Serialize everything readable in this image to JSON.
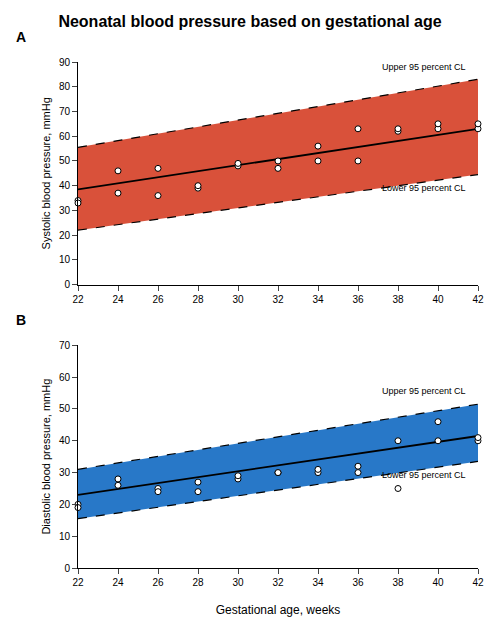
{
  "chart_data": [
    {
      "type": "scatter",
      "title": "Neonatal blood pressure based on gestational age",
      "subtitle": "A",
      "ylabel": "Systolic blood pressure, mmHg",
      "xlim": [
        22,
        42
      ],
      "xticks": [
        22,
        24,
        26,
        28,
        30,
        32,
        34,
        36,
        38,
        40,
        42
      ],
      "ylim": [
        0,
        90
      ],
      "yticks": [
        0,
        10,
        20,
        30,
        40,
        50,
        60,
        70,
        80,
        90
      ],
      "grid": false,
      "series": [
        {
          "type": "band",
          "color": "#d9513a",
          "x": [
            22,
            42
          ],
          "upper": [
            55.5,
            83.0
          ],
          "lower": [
            22.0,
            44.5
          ]
        },
        {
          "type": "line",
          "color": "#000000",
          "line_style": "dashed",
          "x": [
            22,
            42
          ],
          "values": [
            55.5,
            83.0
          ]
        },
        {
          "type": "line",
          "color": "#000000",
          "line_style": "dashed",
          "x": [
            22,
            42
          ],
          "values": [
            22.0,
            44.5
          ]
        },
        {
          "type": "line",
          "color": "#000000",
          "line_style": "solid",
          "x": [
            22,
            42
          ],
          "values": [
            38.5,
            63.0
          ]
        },
        {
          "type": "scatter",
          "color": "#000000",
          "marker": "open circle",
          "x": [
            22,
            22,
            24,
            24,
            26,
            26,
            28,
            28,
            30,
            30,
            32,
            32,
            34,
            34,
            36,
            36,
            38,
            38,
            40,
            40,
            42,
            42
          ],
          "values": [
            34,
            33,
            37,
            46,
            36,
            47,
            39,
            40,
            48,
            49,
            47,
            50,
            50,
            56,
            50,
            63,
            62,
            63,
            63,
            65,
            63,
            65
          ]
        }
      ],
      "annotations": [
        {
          "text": "Upper 95 percent CL",
          "x": 41.5,
          "y": 85.0
        },
        {
          "text": "Lower 95 percent CL",
          "x": 41.5,
          "y": 42.0
        }
      ]
    },
    {
      "type": "scatter",
      "subtitle": "B",
      "xlabel": "Gestational age, weeks",
      "ylabel": "Diastolic blood pressure, mmHg",
      "xlim": [
        22,
        42
      ],
      "xticks": [
        22,
        24,
        26,
        28,
        30,
        32,
        34,
        36,
        38,
        40,
        42
      ],
      "ylim": [
        0,
        70
      ],
      "yticks": [
        0,
        10,
        20,
        30,
        40,
        50,
        60,
        70
      ],
      "grid": false,
      "series": [
        {
          "type": "band",
          "color": "#2878c8",
          "x": [
            22,
            42
          ],
          "upper": [
            31.0,
            51.5
          ],
          "lower": [
            15.5,
            33.5
          ]
        },
        {
          "type": "line",
          "color": "#000000",
          "line_style": "dashed",
          "x": [
            22,
            42
          ],
          "values": [
            31.0,
            51.5
          ]
        },
        {
          "type": "line",
          "color": "#000000",
          "line_style": "dashed",
          "x": [
            22,
            42
          ],
          "values": [
            15.5,
            33.5
          ]
        },
        {
          "type": "line",
          "color": "#000000",
          "line_style": "solid",
          "x": [
            22,
            42
          ],
          "values": [
            23.0,
            41.5
          ]
        },
        {
          "type": "scatter",
          "color": "#000000",
          "marker": "open circle",
          "x": [
            22,
            22,
            24,
            24,
            26,
            26,
            28,
            28,
            30,
            30,
            32,
            32,
            34,
            34,
            36,
            36,
            38,
            38,
            40,
            40,
            42,
            42
          ],
          "values": [
            20,
            19,
            28,
            26,
            25,
            24,
            24,
            27,
            28,
            29,
            30,
            30,
            30,
            31,
            30,
            32,
            25,
            40,
            40,
            46,
            40,
            41
          ]
        }
      ],
      "annotations": [
        {
          "text": "Upper 95 percent CL",
          "x": 41.5,
          "y": 53.5
        },
        {
          "text": "Lower 95 percent CL",
          "x": 41.5,
          "y": 31.5
        }
      ]
    }
  ]
}
